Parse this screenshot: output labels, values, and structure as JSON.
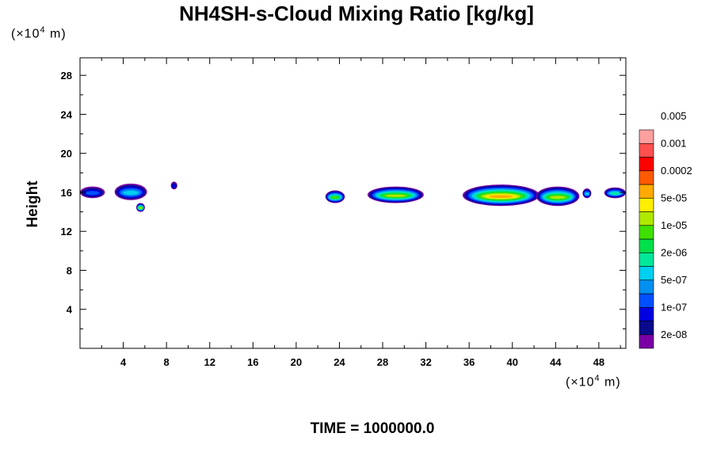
{
  "chart_data": {
    "type": "contour",
    "title": "NH4SH-s-Cloud Mixing Ratio [kg/kg]",
    "ylabel": "Height",
    "x_unit": {
      "prefix": "(×10",
      "exp": "4",
      "suffix": " m)"
    },
    "y_unit": {
      "prefix": "(×10",
      "exp": "4",
      "suffix": " m)"
    },
    "footer": "TIME = 1000000.0",
    "xlim": [
      0,
      50.5
    ],
    "ylim": [
      0,
      29.8
    ],
    "x_ticks": [
      4,
      8,
      12,
      16,
      20,
      24,
      28,
      32,
      36,
      40,
      44,
      48
    ],
    "y_ticks": [
      4,
      8,
      12,
      16,
      20,
      24,
      28
    ],
    "colorbar": {
      "colors": [
        "#7a00a6",
        "#0a0a8c",
        "#0000e0",
        "#0050ff",
        "#0090f0",
        "#00d0f0",
        "#00e89a",
        "#00e04a",
        "#40e000",
        "#b0e800",
        "#ffee00",
        "#ffaa00",
        "#ff5a00",
        "#ff0000",
        "#ff5050",
        "#ffa0a0"
      ],
      "labels": [
        "2e-08",
        "1e-07",
        "5e-07",
        "2e-06",
        "1e-05",
        "5e-05",
        "0.0002",
        "0.001",
        "0.005"
      ]
    },
    "clouds": [
      {
        "x0": 0.0,
        "x1": 2.3,
        "bottom": 15.4,
        "top": 16.6,
        "peak_level": 3
      },
      {
        "x0": 3.2,
        "x1": 6.2,
        "bottom": 15.2,
        "top": 16.9,
        "peak_level": 5
      },
      {
        "x0": 5.2,
        "x1": 6.0,
        "bottom": 14.0,
        "top": 14.9,
        "peak_level": 9
      },
      {
        "x0": 8.4,
        "x1": 9.0,
        "bottom": 16.3,
        "top": 17.1,
        "peak_level": 2
      },
      {
        "x0": 22.7,
        "x1": 24.5,
        "bottom": 14.9,
        "top": 16.2,
        "peak_level": 8
      },
      {
        "x0": 26.6,
        "x1": 31.8,
        "bottom": 14.9,
        "top": 16.6,
        "peak_level": 9
      },
      {
        "x0": 35.4,
        "x1": 42.5,
        "bottom": 14.6,
        "top": 16.8,
        "peak_level": 11
      },
      {
        "x0": 42.2,
        "x1": 46.2,
        "bottom": 14.6,
        "top": 16.6,
        "peak_level": 9
      },
      {
        "x0": 46.5,
        "x1": 47.3,
        "bottom": 15.4,
        "top": 16.4,
        "peak_level": 5
      },
      {
        "x0": 48.5,
        "x1": 50.5,
        "bottom": 15.4,
        "top": 16.5,
        "peak_level": 6
      }
    ]
  }
}
